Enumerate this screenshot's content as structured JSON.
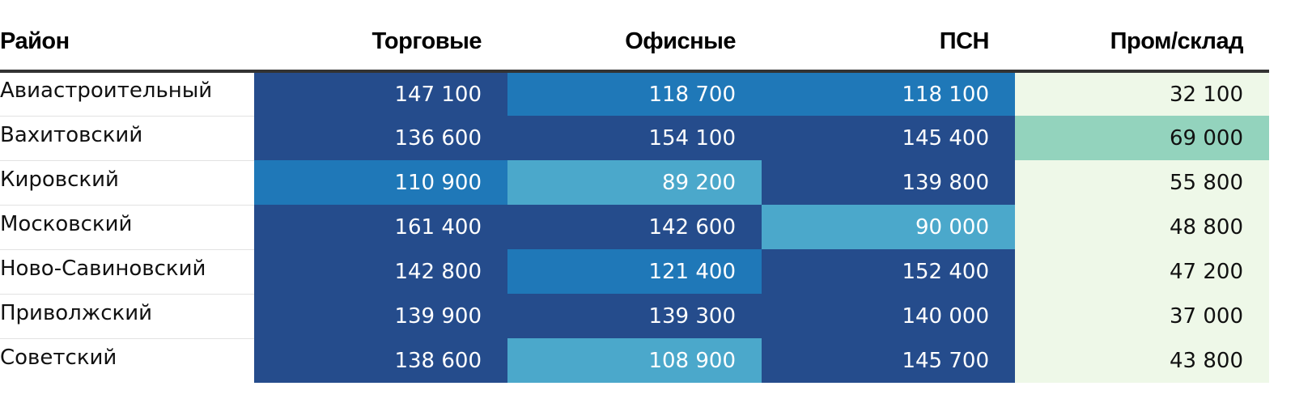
{
  "chart_data": {
    "type": "table",
    "columns": [
      "Район",
      "Торговые",
      "Офисные",
      "ПСН",
      "Пром/склад"
    ],
    "rows": [
      {
        "district": "Авиастроительный",
        "values": [
          "147 100",
          "118 700",
          "118 100",
          "32 100"
        ]
      },
      {
        "district": "Вахитовский",
        "values": [
          "136 600",
          "154 100",
          "145 400",
          "69 000"
        ]
      },
      {
        "district": "Кировский",
        "values": [
          "110 900",
          "89 200",
          "139 800",
          "55 800"
        ]
      },
      {
        "district": "Московский",
        "values": [
          "161 400",
          "142 600",
          "90 000",
          "48 800"
        ]
      },
      {
        "district": "Ново-Савиновский",
        "values": [
          "142 800",
          "121 400",
          "152 400",
          "47 200"
        ]
      },
      {
        "district": "Приволжский",
        "values": [
          "139 900",
          "139 300",
          "140 000",
          "37 000"
        ]
      },
      {
        "district": "Советский",
        "values": [
          "138 600",
          "108 900",
          "145 700",
          "43 800"
        ]
      }
    ],
    "color_scale": {
      "blue_dark": "#254c8c",
      "blue_mid": "#1f78b8",
      "blue_light": "#4ba8cb",
      "green_mid": "#93d3bd",
      "green_pale": "#eef8e8",
      "text_on_dark": "#ffffff",
      "text_on_light": "#111111"
    }
  }
}
